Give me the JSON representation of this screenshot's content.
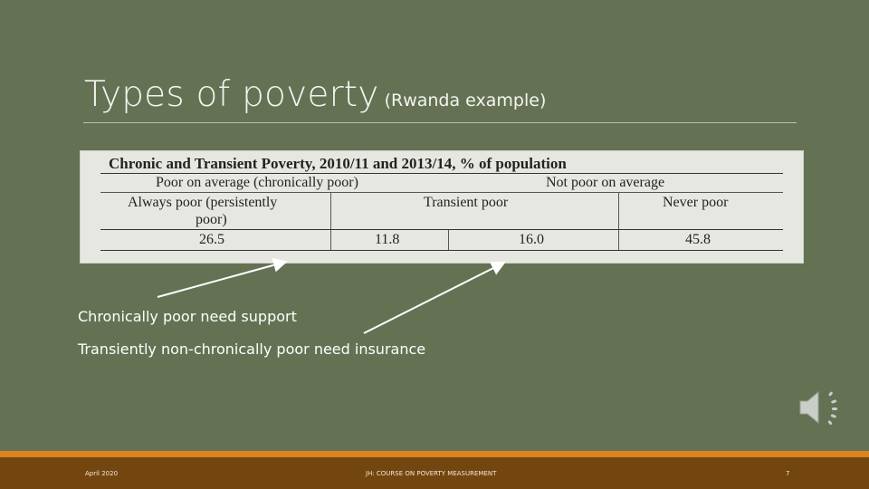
{
  "slide": {
    "title_main": "Types of poverty",
    "title_sub": "(Rwanda example)",
    "table": {
      "caption": "Chronic and Transient Poverty, 2010/11 and 2013/14, % of population",
      "group_headers": [
        "Poor on average (chronically poor)",
        "Not poor on average"
      ],
      "column_headers": {
        "always_poor_line1": "Always poor (persistently",
        "always_poor_line2": "poor)",
        "transient_poor": "Transient poor",
        "never_poor": "Never poor"
      },
      "values": [
        "26.5",
        "11.8",
        "16.0",
        "45.8"
      ]
    },
    "notes": [
      "Chronically poor need support",
      "Transiently non-chronically poor need insurance"
    ],
    "audio_icon": "speaker-icon",
    "footer": {
      "date": "April 2020",
      "course": "JH: COURSE ON POVERTY MEASUREMENT",
      "page_number": "7"
    },
    "colors": {
      "background": "#647253",
      "accent_bar": "#d9841f",
      "footer_bar": "#73460f"
    }
  }
}
